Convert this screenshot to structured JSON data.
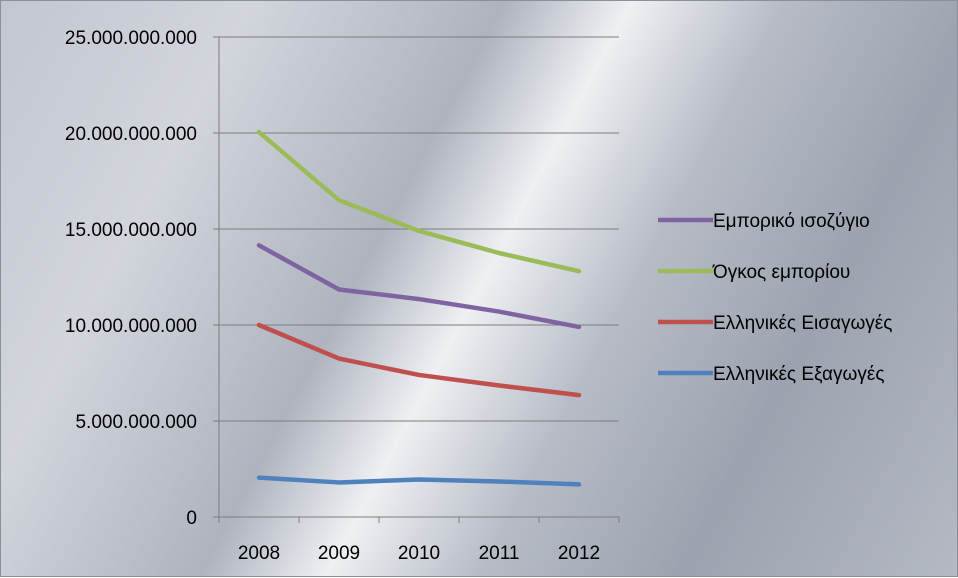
{
  "chart_data": {
    "type": "line",
    "categories": [
      "2008",
      "2009",
      "2010",
      "2011",
      "2012"
    ],
    "ylim": [
      0,
      25000000000
    ],
    "y_ticks": [
      {
        "value": 0,
        "label": "0"
      },
      {
        "value": 5000000000,
        "label": "5.000.000.000"
      },
      {
        "value": 10000000000,
        "label": "10.000.000.000"
      },
      {
        "value": 15000000000,
        "label": "15.000.000.000"
      },
      {
        "value": 20000000000,
        "label": "20.000.000.000"
      },
      {
        "value": 25000000000,
        "label": "25.000.000.000"
      }
    ],
    "grid": "horizontal",
    "legend_position": "right",
    "series": [
      {
        "name": "Εμπορικό ισοζύγιο",
        "color": "#8064a2",
        "values": [
          14150000000,
          11850000000,
          11350000000,
          10700000000,
          9900000000
        ]
      },
      {
        "name": "Όγκος εμπορίου",
        "color": "#9bbb59",
        "values": [
          20050000000,
          16500000000,
          14900000000,
          13750000000,
          12800000000
        ]
      },
      {
        "name": "Ελληνικές Εισαγωγές",
        "color": "#c0504d",
        "values": [
          10000000000,
          8250000000,
          7400000000,
          6850000000,
          6350000000
        ]
      },
      {
        "name": "Ελληνικές Εξαγωγές",
        "color": "#4f81bd",
        "values": [
          2050000000,
          1800000000,
          1950000000,
          1850000000,
          1700000000
        ]
      }
    ]
  }
}
